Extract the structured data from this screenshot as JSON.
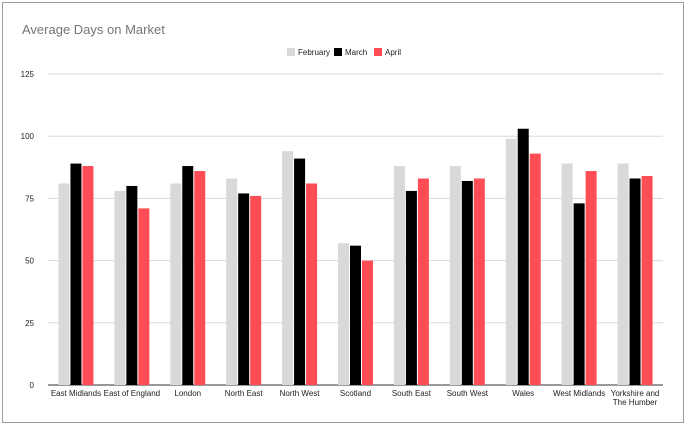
{
  "chart_data": {
    "type": "bar",
    "title": "Average Days on Market",
    "xlabel": "",
    "ylabel": "",
    "ylim": [
      0,
      125
    ],
    "yticks": [
      "0",
      "25",
      "50",
      "75",
      "100",
      "125"
    ],
    "grid": true,
    "legend_position": "top",
    "categories": [
      "East Midlands",
      "East of England",
      "London",
      "North East",
      "North West",
      "Scotland",
      "South East",
      "South West",
      "Wales",
      "West Midlands",
      "Yorkshire and The Humber"
    ],
    "series": [
      {
        "name": "February",
        "color": "#d9d9d9",
        "values": [
          81,
          78,
          81,
          83,
          94,
          57,
          88,
          88,
          99,
          89,
          89
        ]
      },
      {
        "name": "March",
        "color": "#000000",
        "values": [
          89,
          80,
          88,
          77,
          91,
          56,
          78,
          82,
          103,
          73,
          83
        ]
      },
      {
        "name": "April",
        "color": "#ff4d55",
        "values": [
          88,
          71,
          86,
          76,
          81,
          50,
          83,
          83,
          93,
          86,
          84
        ]
      }
    ]
  }
}
